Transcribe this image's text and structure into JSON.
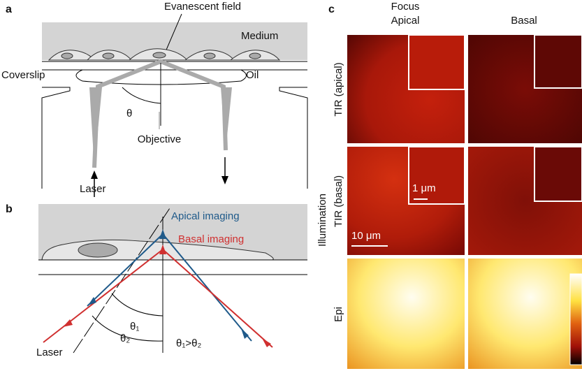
{
  "panel_a": {
    "label": "a",
    "evanescent_field": "Evanescent field",
    "medium": "Medium",
    "coverslip": "Coverslip",
    "oil": "Oil",
    "theta": "θ",
    "objective": "Objective",
    "laser": "Laser"
  },
  "panel_b": {
    "label": "b",
    "apical_imaging": "Apical imaging",
    "basal_imaging": "Basal imaging",
    "theta1": "θ₁",
    "theta2": "θ₂",
    "laser": "Laser",
    "relation": "θ₁>θ₂"
  },
  "panel_c": {
    "label": "c",
    "focus": "Focus",
    "columns": [
      "Apical",
      "Basal"
    ],
    "illumination": "Illumination",
    "rows": [
      "TIR (apical)",
      "TIR (basal)",
      "Epi"
    ],
    "inset_scale": "1 μm",
    "scale": "10 μm"
  }
}
